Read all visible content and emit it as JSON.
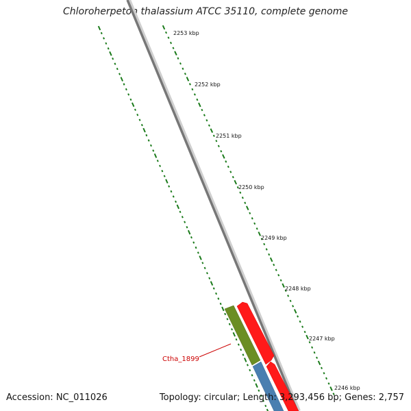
{
  "title": "Chloroherpeton thalassium ATCC 35110, complete genome",
  "accession_label": "Accession: NC_011026",
  "summary_label": "Topology: circular; Length: 3,293,456 bp; Genes: 2,757",
  "colors": {
    "backbone": "#7a7a7a",
    "tick": "#1a7a1a",
    "forward_gene": "#ff0000",
    "reverse_gene": "#6b8e23",
    "rna_gene": "#4a7fb0",
    "label": "#cc0000"
  },
  "scale_labels": [
    "2253 kbp",
    "2252 kbp",
    "2251 kbp",
    "2250 kbp",
    "2249 kbp",
    "2248 kbp",
    "2247 kbp",
    "2246 kbp"
  ],
  "gene_label": "Ctha_1899"
}
